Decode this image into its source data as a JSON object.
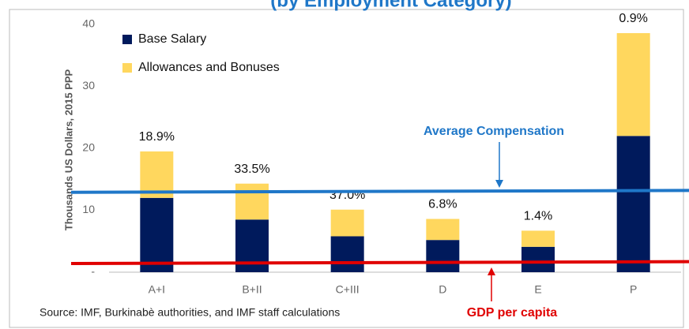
{
  "chart_data": {
    "type": "stacked_bar",
    "title": "(by Employment Category)",
    "y_label": "Thousands US Dollars, 2015 PPP",
    "categories": [
      "A+I",
      "B+II",
      "C+III",
      "D",
      "E",
      "P"
    ],
    "series": [
      {
        "name": "Base Salary",
        "color": "#001a5c",
        "values": [
          12,
          8.5,
          5.8,
          5.2,
          4.1,
          22
        ]
      },
      {
        "name": "Allowances and Bonuses",
        "color": "#ffd75e",
        "values": [
          7.5,
          5.8,
          4.3,
          3.4,
          2.6,
          16.6
        ]
      }
    ],
    "bar_labels": [
      "18.9%",
      "33.5%",
      "37.0%",
      "6.8%",
      "1.4%",
      "0.9%"
    ],
    "reference_lines": [
      {
        "name": "Average Compensation",
        "color": "#1f77c8",
        "values": [
          12.9,
          13.2
        ]
      },
      {
        "name": "GDP per capita",
        "color": "#e00000",
        "values": [
          1.4,
          1.7
        ]
      }
    ],
    "ylim": [
      0,
      40
    ],
    "yticks": [
      {
        "value": 0,
        "label": "-"
      },
      10,
      20,
      30,
      40
    ],
    "source": "Source: IMF, Burkinabè authorities, and IMF staff calculations"
  }
}
